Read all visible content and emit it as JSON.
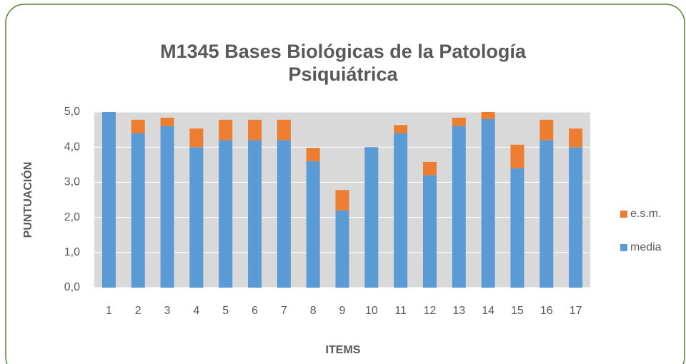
{
  "chart_data": {
    "type": "stacked_bar",
    "title": "M1345 Bases Biológicas de la Patología Psiquiátrica",
    "x_label": "ITEMS",
    "y_label": "PUNTUACIÓN",
    "categories": [
      "1",
      "2",
      "3",
      "4",
      "5",
      "6",
      "7",
      "8",
      "9",
      "10",
      "11",
      "12",
      "13",
      "14",
      "15",
      "16",
      "17"
    ],
    "series": [
      {
        "name": "media",
        "color": "#5b9bd5",
        "values": [
          5.0,
          4.4,
          4.6,
          4.0,
          4.2,
          4.2,
          4.2,
          3.6,
          2.2,
          4.0,
          4.4,
          3.2,
          4.6,
          4.8,
          3.4,
          4.2,
          4.0
        ]
      },
      {
        "name": "e.s.m.",
        "color": "#ed7d31",
        "values": [
          0,
          0.38,
          0.24,
          0.53,
          0.58,
          0.58,
          0.58,
          0.38,
          0.58,
          0,
          0.23,
          0.38,
          0.24,
          0.2,
          0.67,
          0.58,
          0.53
        ]
      }
    ],
    "ylim": [
      0,
      5
    ],
    "yticks": [
      {
        "value": 0,
        "label": "0,0"
      },
      {
        "value": 1,
        "label": "1,0"
      },
      {
        "value": 2,
        "label": "2,0"
      },
      {
        "value": 3,
        "label": "3,0"
      },
      {
        "value": 4,
        "label": "4,0"
      },
      {
        "value": 5,
        "label": "5,0"
      }
    ],
    "grid": true,
    "legend": "right"
  }
}
